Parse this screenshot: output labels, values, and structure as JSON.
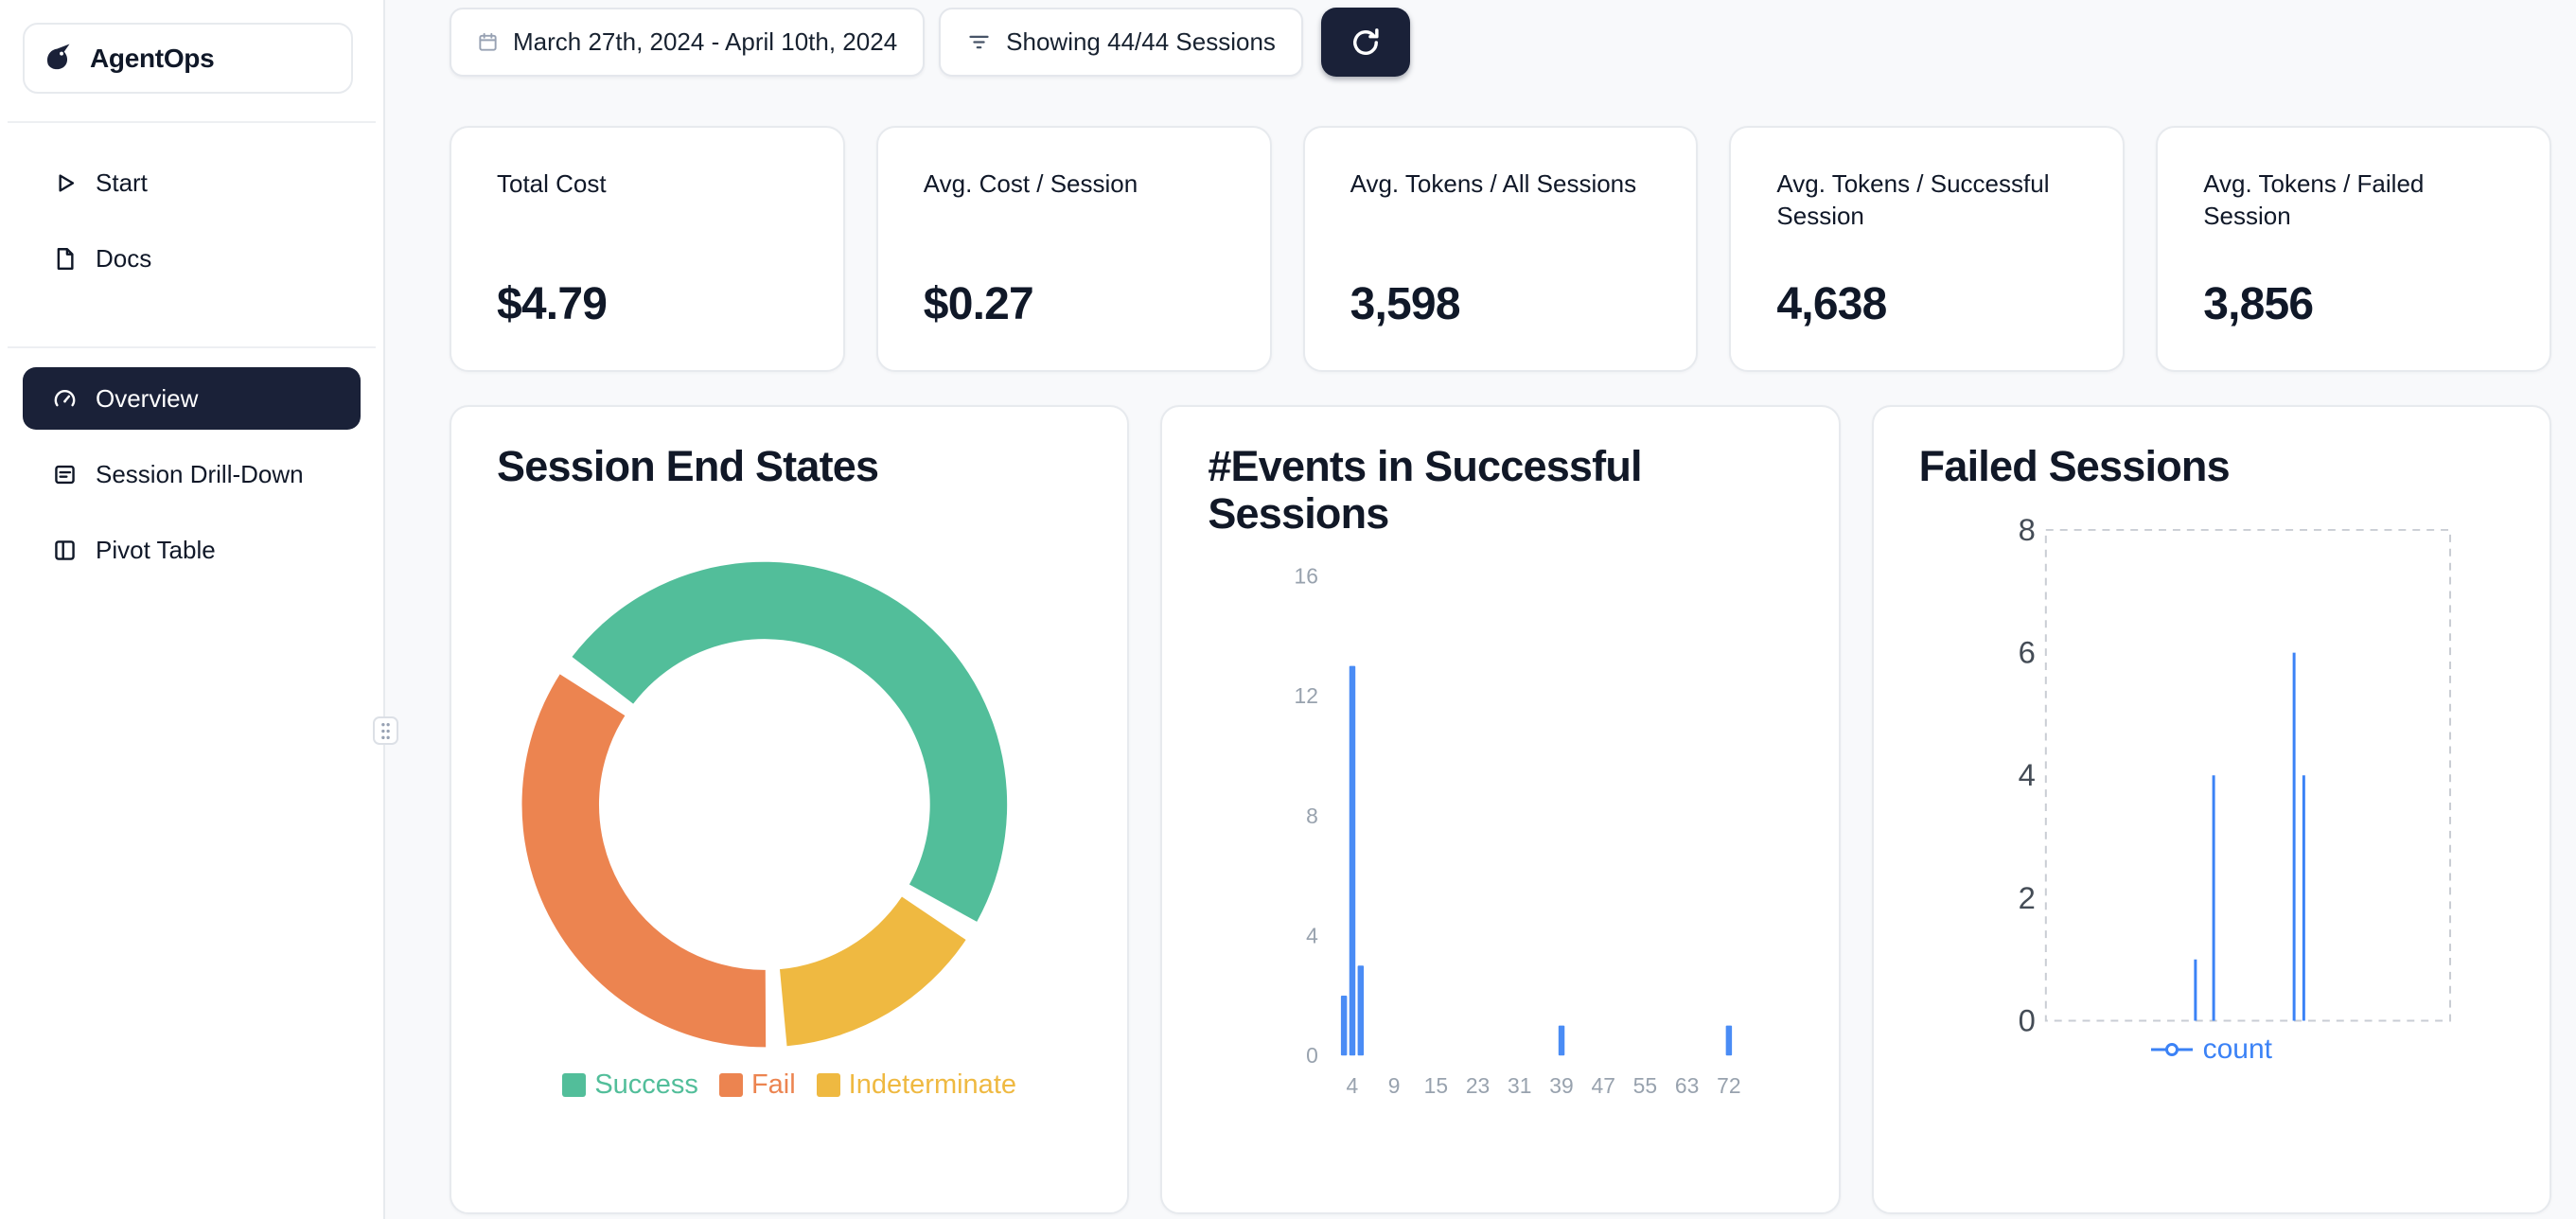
{
  "app": {
    "name": "AgentOps"
  },
  "colors": {
    "accent_dark": "#1a2138",
    "page_bg": "#f8f9fb",
    "card_border": "#e7eaee",
    "success_green": "#52be9a",
    "fail_orange": "#ec8450",
    "indeterminate_yellow": "#efb941",
    "bar_blue": "#4a8cf5",
    "line_blue": "#3b82f6"
  },
  "sidebar": {
    "logo_label": "AgentOps",
    "nav_top": [
      {
        "label": "Start"
      },
      {
        "label": "Docs"
      }
    ],
    "nav_main": [
      {
        "label": "Overview",
        "active": true
      },
      {
        "label": "Session Drill-Down",
        "active": false
      },
      {
        "label": "Pivot Table",
        "active": false
      }
    ]
  },
  "topbar": {
    "date_range": "March 27th, 2024 - April 10th, 2024",
    "sessions_filter": "Showing 44/44 Sessions"
  },
  "stats": [
    {
      "label": "Total Cost",
      "value": "$4.79"
    },
    {
      "label": "Avg. Cost / Session",
      "value": "$0.27"
    },
    {
      "label": "Avg. Tokens / All Sessions",
      "value": "3,598"
    },
    {
      "label": "Avg. Tokens / Successful Session",
      "value": "4,638"
    },
    {
      "label": "Avg. Tokens / Failed Session",
      "value": "3,856"
    }
  ],
  "chart_data": [
    {
      "type": "pie",
      "title": "Session End States",
      "donut": true,
      "start_angle_deg": -55,
      "pad_angle_deg": 5,
      "slices_clockwise": [
        {
          "label": "Success",
          "pct": 49,
          "color": "#52be9a"
        },
        {
          "label": "Indeterminate",
          "pct": 15.5,
          "color": "#efb941"
        },
        {
          "label": "Fail",
          "pct": 35.5,
          "color": "#ec8450"
        }
      ],
      "legend": [
        {
          "label": "Success",
          "color": "#52be9a"
        },
        {
          "label": "Fail",
          "color": "#ec8450"
        },
        {
          "label": "Indeterminate",
          "color": "#efb941"
        }
      ],
      "legend_position": "bottom"
    },
    {
      "type": "bar",
      "title": "#Events in Successful Sessions",
      "ylim": [
        0,
        16
      ],
      "y_ticks": [
        0,
        4,
        8,
        12,
        16
      ],
      "x_ticks": [
        4,
        9,
        15,
        23,
        31,
        39,
        47,
        55,
        63,
        72
      ],
      "bars": [
        {
          "x": 3,
          "count": 2
        },
        {
          "x": 4,
          "count": 13
        },
        {
          "x": 5,
          "count": 3
        },
        {
          "x": 39,
          "count": 1
        },
        {
          "x": 72,
          "count": 1
        }
      ],
      "bar_color": "#4a8cf5",
      "grid": false
    },
    {
      "type": "line",
      "title": "Failed Sessions",
      "ylim": [
        0,
        8
      ],
      "y_ticks": [
        0,
        2,
        4,
        6,
        8
      ],
      "frame": "dashed",
      "series": [
        {
          "name": "count",
          "color": "#3b82f6",
          "spikes": [
            {
              "pos": 0.37,
              "value": 1
            },
            {
              "pos": 0.415,
              "value": 4
            },
            {
              "pos": 0.614,
              "value": 6
            },
            {
              "pos": 0.638,
              "value": 4
            }
          ]
        }
      ],
      "legend_position": "bottom"
    }
  ]
}
